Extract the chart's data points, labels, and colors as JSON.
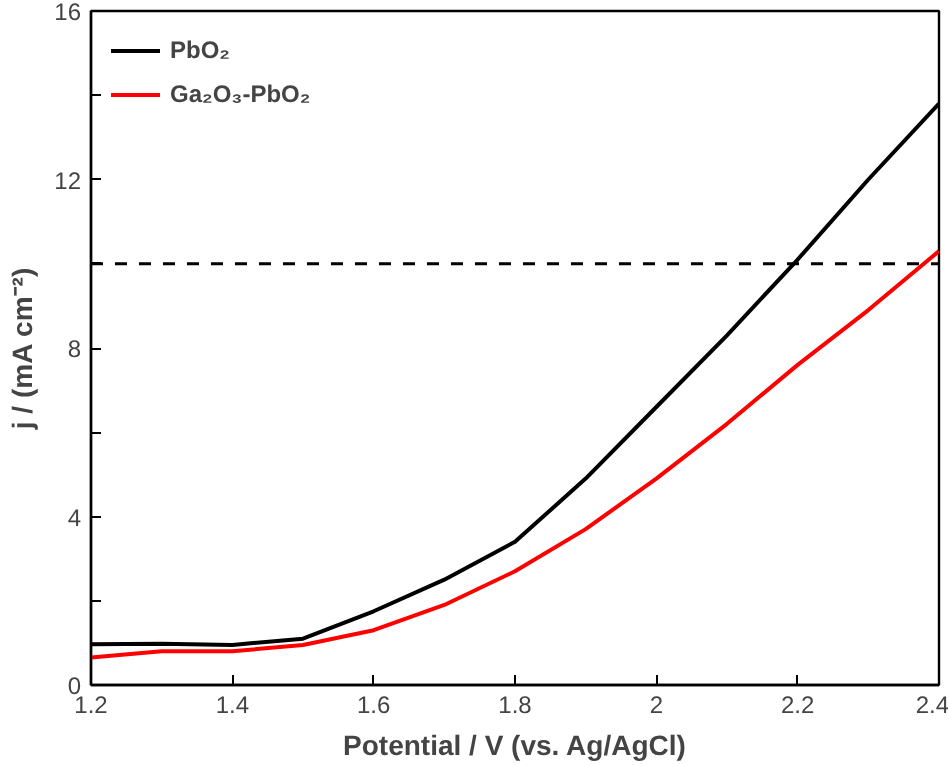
{
  "chart_data": {
    "type": "line",
    "xlabel": "Potential / V (vs. Ag/AgCl)",
    "ylabel": "j / (mA cm⁻²)",
    "x": [
      1.2,
      1.3,
      1.4,
      1.5,
      1.6,
      1.7,
      1.8,
      1.9,
      2.0,
      2.1,
      2.2,
      2.3,
      2.4
    ],
    "series": [
      {
        "name": "PbO₂",
        "color": "#000000",
        "values": [
          0.97,
          0.98,
          0.95,
          1.1,
          1.75,
          2.5,
          3.4,
          4.9,
          6.6,
          8.3,
          10.1,
          12.0,
          13.8
        ]
      },
      {
        "name": "Ga₂O₃-PbO₂",
        "color": "#ff0000",
        "values": [
          0.65,
          0.8,
          0.8,
          0.95,
          1.3,
          1.9,
          2.7,
          3.7,
          4.9,
          6.2,
          7.6,
          8.9,
          10.3
        ]
      }
    ],
    "xlim": [
      1.2,
      2.4
    ],
    "ylim": [
      0,
      16
    ],
    "xticks": [
      1.2,
      1.4,
      1.6,
      1.8,
      2.0,
      2.2,
      2.4
    ],
    "yticks": [
      0,
      {
        "value": 2,
        "label": null
      },
      4,
      {
        "value": 6,
        "label": null
      },
      8,
      {
        "value": 10,
        "label": null
      },
      12,
      {
        "value": 14,
        "label": null
      },
      16
    ],
    "ref_lines": [
      {
        "axis": "y",
        "value": 10,
        "color": "#000000",
        "line_style": "dashed"
      }
    ],
    "grid": false,
    "legend": "top left",
    "line_style": "solid",
    "marker": "none"
  }
}
